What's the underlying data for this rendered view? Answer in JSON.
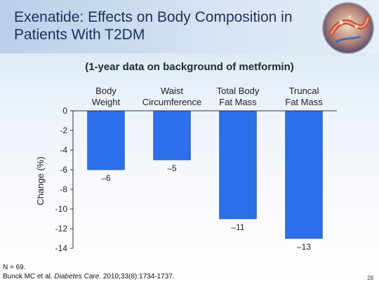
{
  "slide": {
    "title": "Exenatide: Effects on Body Composition in Patients With T2DM",
    "subtitle": "(1-year data on background of metformin)",
    "footnote_n": "N = 69.",
    "citation_authors": "Bunck MC et al.",
    "citation_journal": "Diabetes Care",
    "citation_rest": ". 2010;33(8):1734-1737.",
    "page_number": "28"
  },
  "logo_icon": "gut-hormone-illustration",
  "colors": {
    "bar": "#2d6fea",
    "bar_edge": "#1b4fb8",
    "axis": "#333333",
    "title": "#1f2e5a"
  },
  "chart_data": {
    "type": "bar",
    "categories": [
      [
        "Body",
        "Weight"
      ],
      [
        "Waist",
        "Circumference"
      ],
      [
        "Total Body",
        "Fat Mass"
      ],
      [
        "Truncal",
        "Fat Mass"
      ]
    ],
    "values": [
      -6,
      -5,
      -11,
      -13
    ],
    "data_labels": [
      "–6",
      "–5",
      "–11",
      "–13"
    ],
    "ylabel": "Change (%)",
    "ylim": [
      -14,
      0
    ],
    "yticks": [
      0,
      -2,
      -4,
      -6,
      -8,
      -10,
      -12,
      -14
    ],
    "ytick_labels": [
      "0",
      "-2",
      "-4",
      "-6",
      "-8",
      "-10",
      "-12",
      "-14"
    ],
    "xaxis_position": "top",
    "grid": false,
    "legend": "none"
  }
}
